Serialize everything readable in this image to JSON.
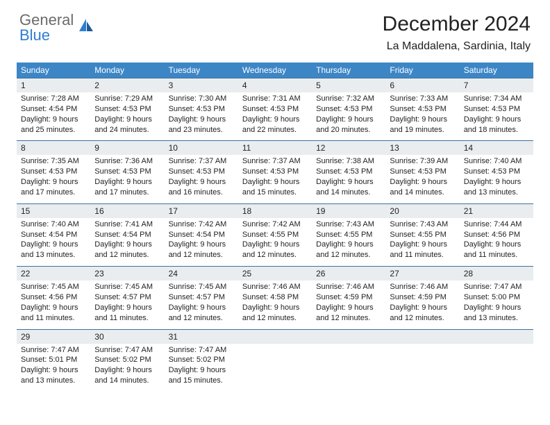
{
  "logo": {
    "general": "General",
    "blue": "Blue"
  },
  "title": "December 2024",
  "location": "La Maddalena, Sardinia, Italy",
  "colors": {
    "header_bg": "#3d86c6",
    "header_fg": "#ffffff",
    "num_bg": "#e9edef",
    "rule": "#3d6fa0",
    "logo_gray": "#6b6b6b",
    "logo_blue": "#2f7dd1"
  },
  "weekdays": [
    "Sunday",
    "Monday",
    "Tuesday",
    "Wednesday",
    "Thursday",
    "Friday",
    "Saturday"
  ],
  "weeks": [
    {
      "nums": [
        "1",
        "2",
        "3",
        "4",
        "5",
        "6",
        "7"
      ],
      "cells": [
        {
          "sunrise": "Sunrise: 7:28 AM",
          "sunset": "Sunset: 4:54 PM",
          "daylight": "Daylight: 9 hours and 25 minutes."
        },
        {
          "sunrise": "Sunrise: 7:29 AM",
          "sunset": "Sunset: 4:53 PM",
          "daylight": "Daylight: 9 hours and 24 minutes."
        },
        {
          "sunrise": "Sunrise: 7:30 AM",
          "sunset": "Sunset: 4:53 PM",
          "daylight": "Daylight: 9 hours and 23 minutes."
        },
        {
          "sunrise": "Sunrise: 7:31 AM",
          "sunset": "Sunset: 4:53 PM",
          "daylight": "Daylight: 9 hours and 22 minutes."
        },
        {
          "sunrise": "Sunrise: 7:32 AM",
          "sunset": "Sunset: 4:53 PM",
          "daylight": "Daylight: 9 hours and 20 minutes."
        },
        {
          "sunrise": "Sunrise: 7:33 AM",
          "sunset": "Sunset: 4:53 PM",
          "daylight": "Daylight: 9 hours and 19 minutes."
        },
        {
          "sunrise": "Sunrise: 7:34 AM",
          "sunset": "Sunset: 4:53 PM",
          "daylight": "Daylight: 9 hours and 18 minutes."
        }
      ]
    },
    {
      "nums": [
        "8",
        "9",
        "10",
        "11",
        "12",
        "13",
        "14"
      ],
      "cells": [
        {
          "sunrise": "Sunrise: 7:35 AM",
          "sunset": "Sunset: 4:53 PM",
          "daylight": "Daylight: 9 hours and 17 minutes."
        },
        {
          "sunrise": "Sunrise: 7:36 AM",
          "sunset": "Sunset: 4:53 PM",
          "daylight": "Daylight: 9 hours and 17 minutes."
        },
        {
          "sunrise": "Sunrise: 7:37 AM",
          "sunset": "Sunset: 4:53 PM",
          "daylight": "Daylight: 9 hours and 16 minutes."
        },
        {
          "sunrise": "Sunrise: 7:37 AM",
          "sunset": "Sunset: 4:53 PM",
          "daylight": "Daylight: 9 hours and 15 minutes."
        },
        {
          "sunrise": "Sunrise: 7:38 AM",
          "sunset": "Sunset: 4:53 PM",
          "daylight": "Daylight: 9 hours and 14 minutes."
        },
        {
          "sunrise": "Sunrise: 7:39 AM",
          "sunset": "Sunset: 4:53 PM",
          "daylight": "Daylight: 9 hours and 14 minutes."
        },
        {
          "sunrise": "Sunrise: 7:40 AM",
          "sunset": "Sunset: 4:53 PM",
          "daylight": "Daylight: 9 hours and 13 minutes."
        }
      ]
    },
    {
      "nums": [
        "15",
        "16",
        "17",
        "18",
        "19",
        "20",
        "21"
      ],
      "cells": [
        {
          "sunrise": "Sunrise: 7:40 AM",
          "sunset": "Sunset: 4:54 PM",
          "daylight": "Daylight: 9 hours and 13 minutes."
        },
        {
          "sunrise": "Sunrise: 7:41 AM",
          "sunset": "Sunset: 4:54 PM",
          "daylight": "Daylight: 9 hours and 12 minutes."
        },
        {
          "sunrise": "Sunrise: 7:42 AM",
          "sunset": "Sunset: 4:54 PM",
          "daylight": "Daylight: 9 hours and 12 minutes."
        },
        {
          "sunrise": "Sunrise: 7:42 AM",
          "sunset": "Sunset: 4:55 PM",
          "daylight": "Daylight: 9 hours and 12 minutes."
        },
        {
          "sunrise": "Sunrise: 7:43 AM",
          "sunset": "Sunset: 4:55 PM",
          "daylight": "Daylight: 9 hours and 12 minutes."
        },
        {
          "sunrise": "Sunrise: 7:43 AM",
          "sunset": "Sunset: 4:55 PM",
          "daylight": "Daylight: 9 hours and 11 minutes."
        },
        {
          "sunrise": "Sunrise: 7:44 AM",
          "sunset": "Sunset: 4:56 PM",
          "daylight": "Daylight: 9 hours and 11 minutes."
        }
      ]
    },
    {
      "nums": [
        "22",
        "23",
        "24",
        "25",
        "26",
        "27",
        "28"
      ],
      "cells": [
        {
          "sunrise": "Sunrise: 7:45 AM",
          "sunset": "Sunset: 4:56 PM",
          "daylight": "Daylight: 9 hours and 11 minutes."
        },
        {
          "sunrise": "Sunrise: 7:45 AM",
          "sunset": "Sunset: 4:57 PM",
          "daylight": "Daylight: 9 hours and 11 minutes."
        },
        {
          "sunrise": "Sunrise: 7:45 AM",
          "sunset": "Sunset: 4:57 PM",
          "daylight": "Daylight: 9 hours and 12 minutes."
        },
        {
          "sunrise": "Sunrise: 7:46 AM",
          "sunset": "Sunset: 4:58 PM",
          "daylight": "Daylight: 9 hours and 12 minutes."
        },
        {
          "sunrise": "Sunrise: 7:46 AM",
          "sunset": "Sunset: 4:59 PM",
          "daylight": "Daylight: 9 hours and 12 minutes."
        },
        {
          "sunrise": "Sunrise: 7:46 AM",
          "sunset": "Sunset: 4:59 PM",
          "daylight": "Daylight: 9 hours and 12 minutes."
        },
        {
          "sunrise": "Sunrise: 7:47 AM",
          "sunset": "Sunset: 5:00 PM",
          "daylight": "Daylight: 9 hours and 13 minutes."
        }
      ]
    },
    {
      "nums": [
        "29",
        "30",
        "31",
        "",
        "",
        "",
        ""
      ],
      "cells": [
        {
          "sunrise": "Sunrise: 7:47 AM",
          "sunset": "Sunset: 5:01 PM",
          "daylight": "Daylight: 9 hours and 13 minutes."
        },
        {
          "sunrise": "Sunrise: 7:47 AM",
          "sunset": "Sunset: 5:02 PM",
          "daylight": "Daylight: 9 hours and 14 minutes."
        },
        {
          "sunrise": "Sunrise: 7:47 AM",
          "sunset": "Sunset: 5:02 PM",
          "daylight": "Daylight: 9 hours and 15 minutes."
        },
        null,
        null,
        null,
        null
      ]
    }
  ]
}
